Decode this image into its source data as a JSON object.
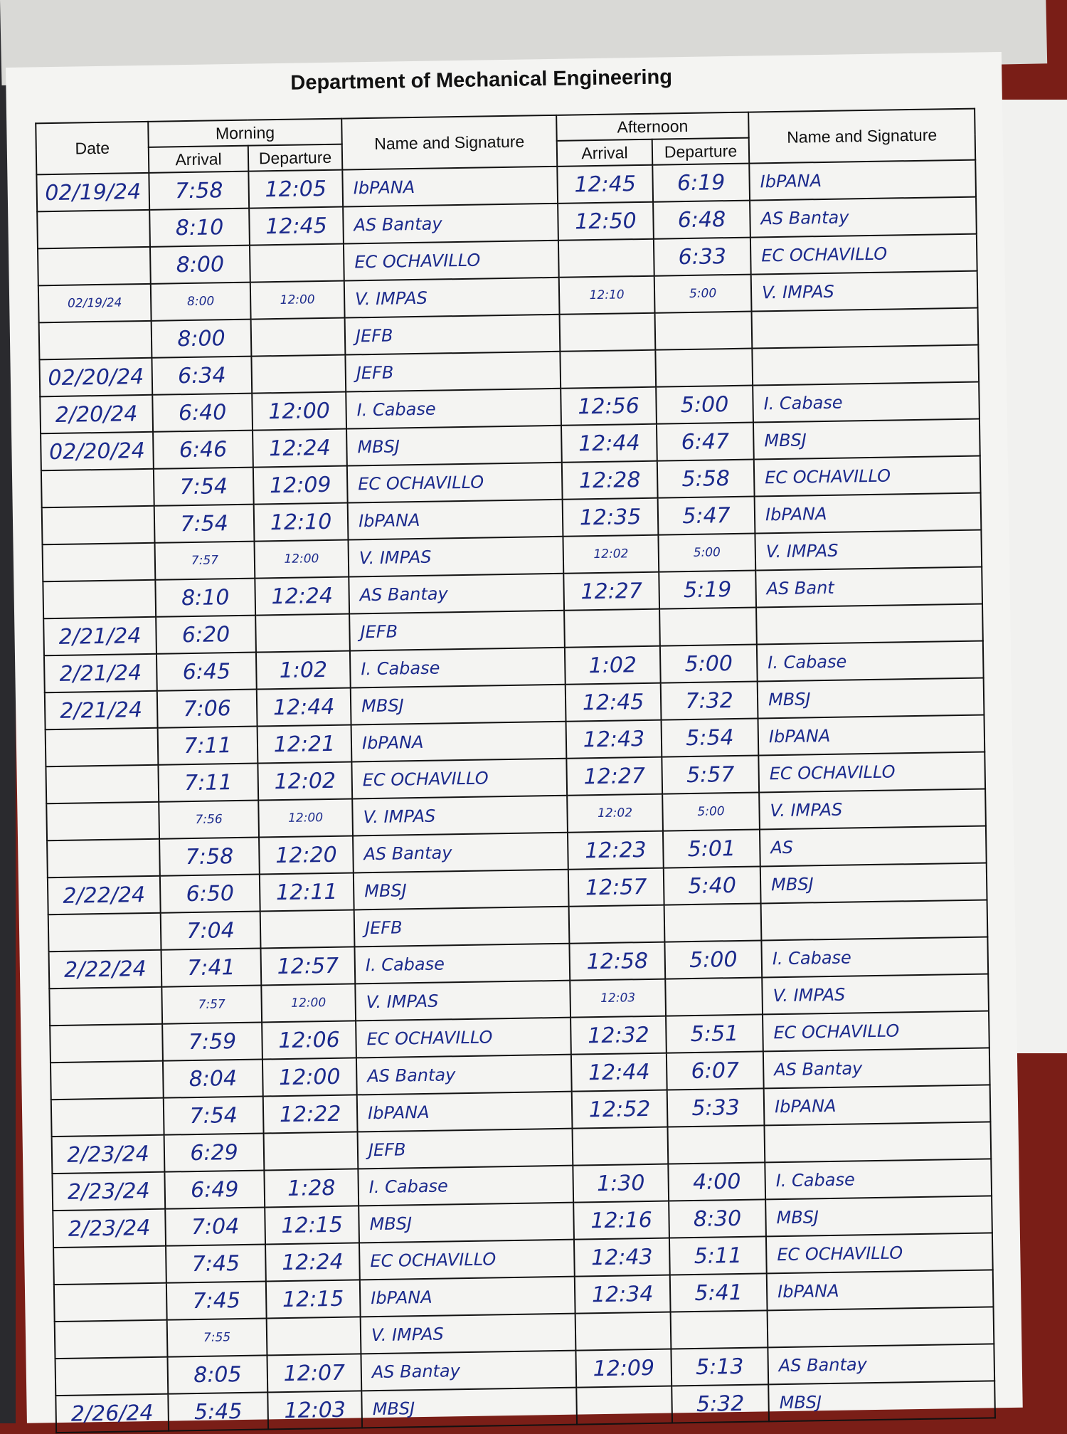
{
  "title": "Department of Mechanical Engineering",
  "headers": {
    "date": "Date",
    "morning": "Morning",
    "afternoon": "Afternoon",
    "arrival": "Arrival",
    "departure": "Departure",
    "name_signature": "Name and Signature"
  },
  "ink_color": "#1b2a8c",
  "rows": [
    {
      "date": "02/19/24",
      "am_arr": "7:58",
      "am_dep": "12:05",
      "am_name": "IbPANA",
      "pm_arr": "12:45",
      "pm_dep": "6:19",
      "pm_name": "IbPANA"
    },
    {
      "date": "",
      "am_arr": "8:10",
      "am_dep": "12:45",
      "am_name": "AS Bantay",
      "pm_arr": "12:50",
      "pm_dep": "6:48",
      "pm_name": "AS Bantay"
    },
    {
      "date": "",
      "am_arr": "8:00",
      "am_dep": "",
      "am_name": "EC OCHAVILLO",
      "pm_arr": "",
      "pm_dep": "6:33",
      "pm_name": "EC OCHAVILLO"
    },
    {
      "date": "02/19/24",
      "am_arr": "8:00",
      "am_dep": "12:00",
      "am_name": "V. IMPAS",
      "pm_arr": "12:10",
      "pm_dep": "5:00",
      "pm_name": "V. IMPAS",
      "small": true
    },
    {
      "date": "",
      "am_arr": "8:00",
      "am_dep": "",
      "am_name": "JEFB",
      "pm_arr": "",
      "pm_dep": "",
      "pm_name": ""
    },
    {
      "date": "02/20/24",
      "am_arr": "6:34",
      "am_dep": "",
      "am_name": "JEFB",
      "pm_arr": "",
      "pm_dep": "",
      "pm_name": ""
    },
    {
      "date": "2/20/24",
      "am_arr": "6:40",
      "am_dep": "12:00",
      "am_name": "I. Cabase",
      "pm_arr": "12:56",
      "pm_dep": "5:00",
      "pm_name": "I. Cabase"
    },
    {
      "date": "02/20/24",
      "am_arr": "6:46",
      "am_dep": "12:24",
      "am_name": "MBSJ",
      "pm_arr": "12:44",
      "pm_dep": "6:47",
      "pm_name": "MBSJ"
    },
    {
      "date": "",
      "am_arr": "7:54",
      "am_dep": "12:09",
      "am_name": "EC OCHAVILLO",
      "pm_arr": "12:28",
      "pm_dep": "5:58",
      "pm_name": "EC OCHAVILLO"
    },
    {
      "date": "",
      "am_arr": "7:54",
      "am_dep": "12:10",
      "am_name": "IbPANA",
      "pm_arr": "12:35",
      "pm_dep": "5:47",
      "pm_name": "IbPANA"
    },
    {
      "date": "",
      "am_arr": "7:57",
      "am_dep": "12:00",
      "am_name": "V. IMPAS",
      "pm_arr": "12:02",
      "pm_dep": "5:00",
      "pm_name": "V. IMPAS",
      "small": true
    },
    {
      "date": "",
      "am_arr": "8:10",
      "am_dep": "12:24",
      "am_name": "AS Bantay",
      "pm_arr": "12:27",
      "pm_dep": "5:19",
      "pm_name": "AS Bant"
    },
    {
      "date": "2/21/24",
      "am_arr": "6:20",
      "am_dep": "",
      "am_name": "JEFB",
      "pm_arr": "",
      "pm_dep": "",
      "pm_name": ""
    },
    {
      "date": "2/21/24",
      "am_arr": "6:45",
      "am_dep": "1:02",
      "am_name": "I. Cabase",
      "pm_arr": "1:02",
      "pm_dep": "5:00",
      "pm_name": "I. Cabase"
    },
    {
      "date": "2/21/24",
      "am_arr": "7:06",
      "am_dep": "12:44",
      "am_name": "MBSJ",
      "pm_arr": "12:45",
      "pm_dep": "7:32",
      "pm_name": "MBSJ"
    },
    {
      "date": "",
      "am_arr": "7:11",
      "am_dep": "12:21",
      "am_name": "IbPANA",
      "pm_arr": "12:43",
      "pm_dep": "5:54",
      "pm_name": "IbPANA"
    },
    {
      "date": "",
      "am_arr": "7:11",
      "am_dep": "12:02",
      "am_name": "EC OCHAVILLO",
      "pm_arr": "12:27",
      "pm_dep": "5:57",
      "pm_name": "EC OCHAVILLO"
    },
    {
      "date": "",
      "am_arr": "7:56",
      "am_dep": "12:00",
      "am_name": "V. IMPAS",
      "pm_arr": "12:02",
      "pm_dep": "5:00",
      "pm_name": "V. IMPAS",
      "small": true
    },
    {
      "date": "",
      "am_arr": "7:58",
      "am_dep": "12:20",
      "am_name": "AS Bantay",
      "pm_arr": "12:23",
      "pm_dep": "5:01",
      "pm_name": "AS"
    },
    {
      "date": "2/22/24",
      "am_arr": "6:50",
      "am_dep": "12:11",
      "am_name": "MBSJ",
      "pm_arr": "12:57",
      "pm_dep": "5:40",
      "pm_name": "MBSJ"
    },
    {
      "date": "",
      "am_arr": "7:04",
      "am_dep": "",
      "am_name": "JEFB",
      "pm_arr": "",
      "pm_dep": "",
      "pm_name": ""
    },
    {
      "date": "2/22/24",
      "am_arr": "7:41",
      "am_dep": "12:57",
      "am_name": "I. Cabase",
      "pm_arr": "12:58",
      "pm_dep": "5:00",
      "pm_name": "I. Cabase"
    },
    {
      "date": "",
      "am_arr": "7:57",
      "am_dep": "12:00",
      "am_name": "V. IMPAS",
      "pm_arr": "12:03",
      "pm_dep": "",
      "pm_name": "V. IMPAS",
      "small": true
    },
    {
      "date": "",
      "am_arr": "7:59",
      "am_dep": "12:06",
      "am_name": "EC OCHAVILLO",
      "pm_arr": "12:32",
      "pm_dep": "5:51",
      "pm_name": "EC OCHAVILLO"
    },
    {
      "date": "",
      "am_arr": "8:04",
      "am_dep": "12:00",
      "am_name": "AS Bantay",
      "pm_arr": "12:44",
      "pm_dep": "6:07",
      "pm_name": "AS Bantay"
    },
    {
      "date": "",
      "am_arr": "7:54",
      "am_dep": "12:22",
      "am_name": "IbPANA",
      "pm_arr": "12:52",
      "pm_dep": "5:33",
      "pm_name": "IbPANA"
    },
    {
      "date": "2/23/24",
      "am_arr": "6:29",
      "am_dep": "",
      "am_name": "JEFB",
      "pm_arr": "",
      "pm_dep": "",
      "pm_name": ""
    },
    {
      "date": "2/23/24",
      "am_arr": "6:49",
      "am_dep": "1:28",
      "am_name": "I. Cabase",
      "pm_arr": "1:30",
      "pm_dep": "4:00",
      "pm_name": "I. Cabase"
    },
    {
      "date": "2/23/24",
      "am_arr": "7:04",
      "am_dep": "12:15",
      "am_name": "MBSJ",
      "pm_arr": "12:16",
      "pm_dep": "8:30",
      "pm_name": "MBSJ"
    },
    {
      "date": "",
      "am_arr": "7:45",
      "am_dep": "12:24",
      "am_name": "EC OCHAVILLO",
      "pm_arr": "12:43",
      "pm_dep": "5:11",
      "pm_name": "EC OCHAVILLO"
    },
    {
      "date": "",
      "am_arr": "7:45",
      "am_dep": "12:15",
      "am_name": "IbPANA",
      "pm_arr": "12:34",
      "pm_dep": "5:41",
      "pm_name": "IbPANA"
    },
    {
      "date": "",
      "am_arr": "7:55",
      "am_dep": "",
      "am_name": "V. IMPAS",
      "pm_arr": "",
      "pm_dep": "",
      "pm_name": "",
      "small": true
    },
    {
      "date": "",
      "am_arr": "8:05",
      "am_dep": "12:07",
      "am_name": "AS Bantay",
      "pm_arr": "12:09",
      "pm_dep": "5:13",
      "pm_name": "AS Bantay"
    },
    {
      "date": "2/26/24",
      "am_arr": "5:45",
      "am_dep": "12:03",
      "am_name": "MBSJ",
      "pm_arr": "",
      "pm_dep": "5:32",
      "pm_name": "MBSJ"
    }
  ]
}
